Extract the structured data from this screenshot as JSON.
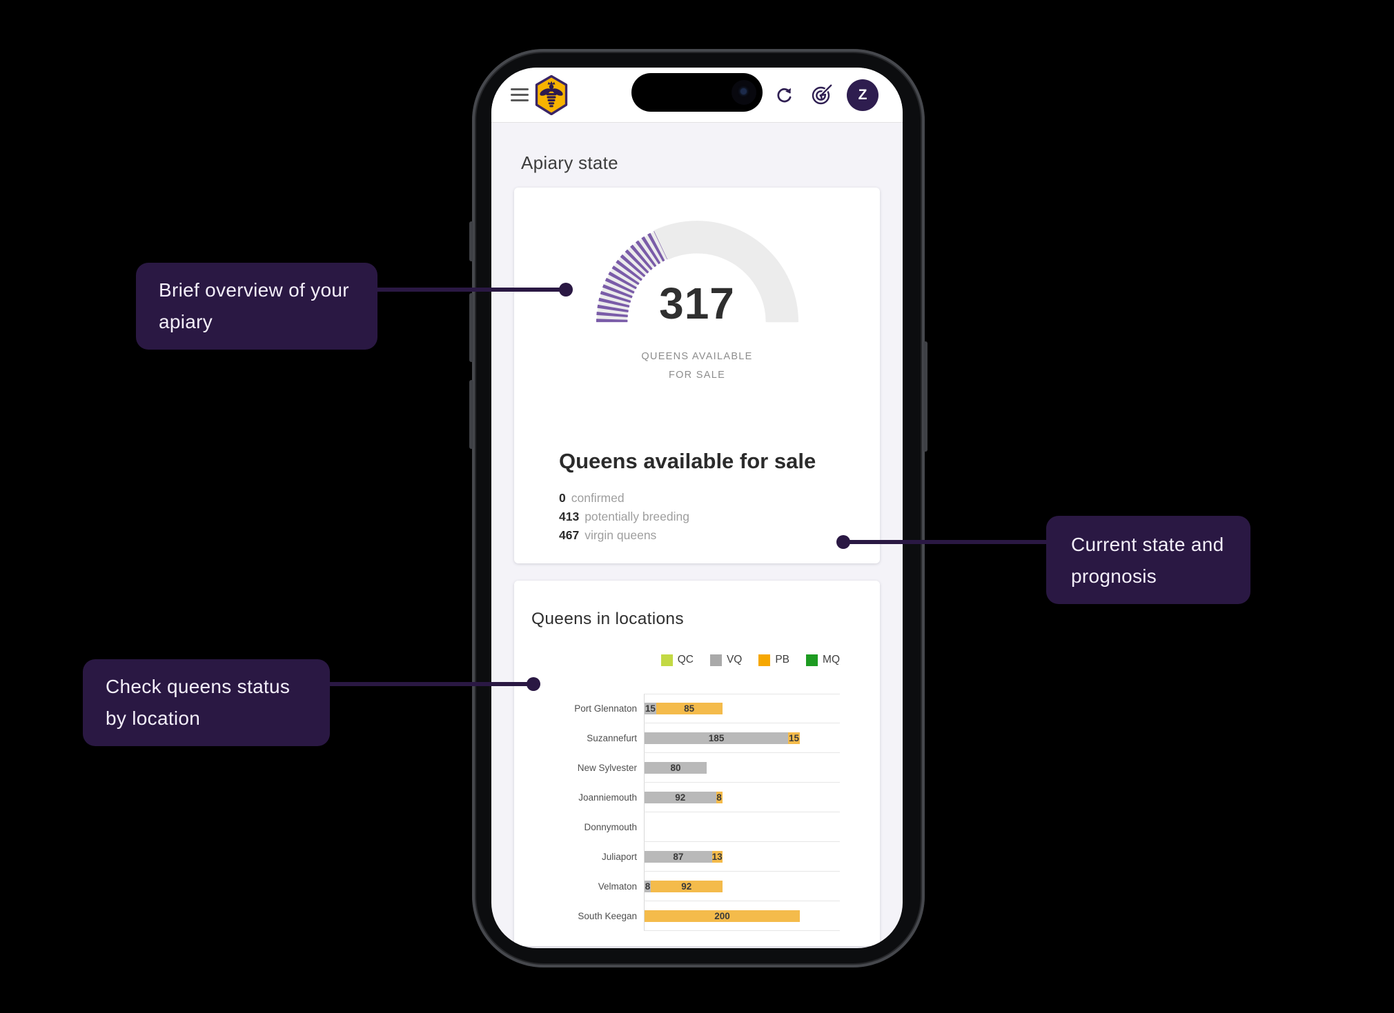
{
  "header": {
    "avatar_initial": "Z"
  },
  "screen": {
    "page_title": "Apiary state",
    "overview_card": {
      "gauge": {
        "value": "317",
        "caption_line1": "QUEENS AVAILABLE",
        "caption_line2": "FOR SALE"
      },
      "title": "Queens available for sale",
      "stats": [
        {
          "value": "0",
          "label": "confirmed"
        },
        {
          "value": "413",
          "label": "potentially breeding"
        },
        {
          "value": "467",
          "label": "virgin queens"
        }
      ]
    },
    "locations_card": {
      "title": "Queens in locations"
    }
  },
  "callouts": {
    "overview": "Brief overview of your apiary",
    "state": "Current state and prognosis",
    "locations": "Check queens status by location"
  },
  "chart_data": [
    {
      "type": "gauge",
      "title": "Queens available for sale",
      "value": 317,
      "label": "QUEENS AVAILABLE FOR SALE",
      "fill_fraction": 0.36,
      "arc_color": "#7a5ca8",
      "track_color": "#ececec"
    },
    {
      "type": "bar",
      "title": "Queens in locations",
      "orientation": "horizontal",
      "stacked": true,
      "categories": [
        "Port Glennaton",
        "Suzannefurt",
        "New Sylvester",
        "Joanniemouth",
        "Donnymouth",
        "Juliaport",
        "Velmaton",
        "South Keegan"
      ],
      "series": [
        {
          "name": "VQ",
          "color": "#b9b9b9",
          "values": [
            15,
            185,
            80,
            92,
            0,
            87,
            8,
            0
          ]
        },
        {
          "name": "PB",
          "color": "#f4bb4b",
          "values": [
            85,
            15,
            0,
            8,
            0,
            13,
            92,
            200
          ]
        }
      ],
      "legend": [
        {
          "label": "QC",
          "color": "#c3d944"
        },
        {
          "label": "VQ",
          "color": "#a9a9a9"
        },
        {
          "label": "PB",
          "color": "#f6a700"
        },
        {
          "label": "MQ",
          "color": "#1d9b21"
        }
      ],
      "legend_position": "top-right",
      "xlim": [
        0,
        250
      ],
      "grid": "row-separators"
    }
  ]
}
